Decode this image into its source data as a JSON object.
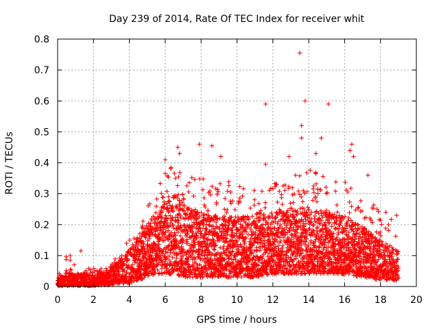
{
  "chart_data": {
    "type": "scatter",
    "title": "Day 239 of 2014, Rate Of TEC Index for receiver whit",
    "xlabel": "GPS time / hours",
    "ylabel": "ROTI / TECUs",
    "xlim": [
      0,
      20
    ],
    "ylim": [
      0,
      0.8
    ],
    "x_ticks": [
      0,
      2,
      4,
      6,
      8,
      10,
      12,
      14,
      16,
      18,
      20
    ],
    "x_tick_labels": [
      "0",
      "2",
      "4",
      "6",
      "8",
      "10",
      "12",
      "14",
      "16",
      "18",
      "20"
    ],
    "y_ticks": [
      0,
      0.1,
      0.2,
      0.3,
      0.4,
      0.5,
      0.6,
      0.7,
      0.8
    ],
    "y_tick_labels": [
      "0",
      "0.1",
      "0.2",
      "0.3",
      "0.4",
      "0.5",
      "0.6",
      "0.7",
      "0.8"
    ],
    "grid": true,
    "marker": "plus",
    "color": "#ff0000",
    "time_range": [
      0,
      19
    ],
    "envelope": [
      {
        "x": 0.0,
        "base": 0.0,
        "typical": 0.015,
        "peak": 0.03
      },
      {
        "x": 0.5,
        "base": 0.0,
        "typical": 0.03,
        "peak": 0.1
      },
      {
        "x": 1.0,
        "base": 0.0,
        "typical": 0.025,
        "peak": 0.07
      },
      {
        "x": 1.5,
        "base": 0.0,
        "typical": 0.03,
        "peak": 0.06
      },
      {
        "x": 2.0,
        "base": 0.0,
        "typical": 0.03,
        "peak": 0.06
      },
      {
        "x": 2.5,
        "base": 0.005,
        "typical": 0.03,
        "peak": 0.06
      },
      {
        "x": 3.0,
        "base": 0.005,
        "typical": 0.04,
        "peak": 0.07
      },
      {
        "x": 3.5,
        "base": 0.01,
        "typical": 0.06,
        "peak": 0.12
      },
      {
        "x": 4.0,
        "base": 0.01,
        "typical": 0.08,
        "peak": 0.15
      },
      {
        "x": 4.5,
        "base": 0.02,
        "typical": 0.11,
        "peak": 0.2
      },
      {
        "x": 5.0,
        "base": 0.03,
        "typical": 0.14,
        "peak": 0.26
      },
      {
        "x": 5.5,
        "base": 0.04,
        "typical": 0.16,
        "peak": 0.3
      },
      {
        "x": 6.0,
        "base": 0.04,
        "typical": 0.18,
        "peak": 0.38
      },
      {
        "x": 6.5,
        "base": 0.04,
        "typical": 0.2,
        "peak": 0.4
      },
      {
        "x": 7.0,
        "base": 0.03,
        "typical": 0.18,
        "peak": 0.35
      },
      {
        "x": 8.0,
        "base": 0.03,
        "typical": 0.16,
        "peak": 0.36
      },
      {
        "x": 9.0,
        "base": 0.03,
        "typical": 0.15,
        "peak": 0.36
      },
      {
        "x": 10.0,
        "base": 0.03,
        "typical": 0.15,
        "peak": 0.34
      },
      {
        "x": 11.0,
        "base": 0.03,
        "typical": 0.16,
        "peak": 0.33
      },
      {
        "x": 12.0,
        "base": 0.04,
        "typical": 0.16,
        "peak": 0.34
      },
      {
        "x": 13.0,
        "base": 0.04,
        "typical": 0.17,
        "peak": 0.36
      },
      {
        "x": 14.0,
        "base": 0.04,
        "typical": 0.17,
        "peak": 0.38
      },
      {
        "x": 15.0,
        "base": 0.04,
        "typical": 0.16,
        "peak": 0.36
      },
      {
        "x": 16.0,
        "base": 0.04,
        "typical": 0.15,
        "peak": 0.34
      },
      {
        "x": 17.0,
        "base": 0.03,
        "typical": 0.13,
        "peak": 0.3
      },
      {
        "x": 18.0,
        "base": 0.02,
        "typical": 0.1,
        "peak": 0.25
      },
      {
        "x": 19.0,
        "base": 0.02,
        "typical": 0.08,
        "peak": 0.2
      }
    ],
    "notable_points": [
      {
        "x": 0.7,
        "y": 0.1
      },
      {
        "x": 1.3,
        "y": 0.115
      },
      {
        "x": 6.0,
        "y": 0.41
      },
      {
        "x": 6.7,
        "y": 0.45
      },
      {
        "x": 6.8,
        "y": 0.43
      },
      {
        "x": 7.9,
        "y": 0.46
      },
      {
        "x": 8.6,
        "y": 0.455
      },
      {
        "x": 9.1,
        "y": 0.42
      },
      {
        "x": 11.6,
        "y": 0.59
      },
      {
        "x": 11.6,
        "y": 0.395
      },
      {
        "x": 12.9,
        "y": 0.42
      },
      {
        "x": 13.5,
        "y": 0.755
      },
      {
        "x": 13.6,
        "y": 0.52
      },
      {
        "x": 13.6,
        "y": 0.48
      },
      {
        "x": 13.8,
        "y": 0.6
      },
      {
        "x": 14.4,
        "y": 0.43
      },
      {
        "x": 14.7,
        "y": 0.48
      },
      {
        "x": 15.1,
        "y": 0.59
      },
      {
        "x": 16.4,
        "y": 0.46
      },
      {
        "x": 16.3,
        "y": 0.44
      },
      {
        "x": 16.5,
        "y": 0.42
      },
      {
        "x": 17.3,
        "y": 0.36
      },
      {
        "x": 18.3,
        "y": 0.24
      },
      {
        "x": 18.9,
        "y": 0.23
      }
    ]
  }
}
